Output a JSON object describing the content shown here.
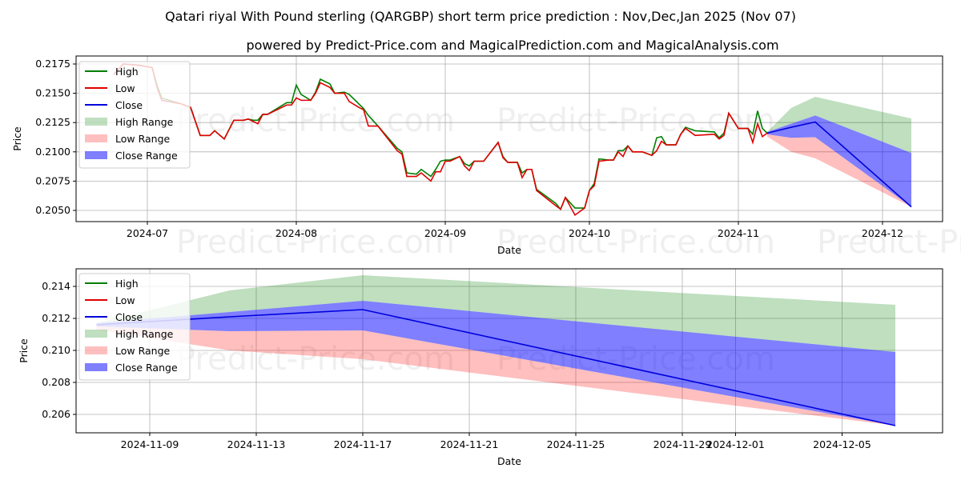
{
  "title": "Qatari riyal With Pound sterling (QARGBP) short term price prediction : Nov,Dec,Jan 2025 (Nov 07)",
  "subtitle": "powered by Predict-Price.com and MagicalPrediction.com and MagicalAnalysis.com",
  "watermark": "Predict-Price.com",
  "colors": {
    "high": "#008000",
    "low": "#e00000",
    "close": "#0000dd",
    "high_range": "#008000",
    "low_range": "#ff0000",
    "close_range": "#0000ff"
  },
  "legend": [
    "High",
    "Low",
    "Close",
    "High Range",
    "Low Range",
    "Close Range"
  ],
  "chart_data": [
    {
      "type": "line",
      "xlabel": "Date",
      "ylabel": "Price",
      "ylim": [
        0.204,
        0.2182
      ],
      "grid": true,
      "legend_position": "top-left",
      "x_ticks": [
        "2024-07",
        "2024-08",
        "2024-09",
        "2024-10",
        "2024-11",
        "2024-12"
      ],
      "y_ticks": [
        "0.2050",
        "0.2075",
        "0.2100",
        "0.2125",
        "0.2150",
        "0.2175"
      ],
      "history": {
        "dates": [
          "2024-06-24",
          "2024-06-26",
          "2024-06-29",
          "2024-07-02",
          "2024-07-03",
          "2024-07-04",
          "2024-07-08",
          "2024-07-10",
          "2024-07-12",
          "2024-07-14",
          "2024-07-15",
          "2024-07-17",
          "2024-07-19",
          "2024-07-21",
          "2024-07-22",
          "2024-07-23",
          "2024-07-24",
          "2024-07-25",
          "2024-07-26",
          "2024-07-30",
          "2024-07-31",
          "2024-08-01",
          "2024-08-02",
          "2024-08-04",
          "2024-08-05",
          "2024-08-06",
          "2024-08-08",
          "2024-08-09",
          "2024-08-11",
          "2024-08-12",
          "2024-08-14",
          "2024-08-15",
          "2024-08-16",
          "2024-08-18",
          "2024-08-22",
          "2024-08-23",
          "2024-08-24",
          "2024-08-26",
          "2024-08-27",
          "2024-08-29",
          "2024-08-30",
          "2024-08-31",
          "2024-09-01",
          "2024-09-02",
          "2024-09-04",
          "2024-09-05",
          "2024-09-06",
          "2024-09-07",
          "2024-09-09",
          "2024-09-12",
          "2024-09-13",
          "2024-09-14",
          "2024-09-16",
          "2024-09-17",
          "2024-09-18",
          "2024-09-19",
          "2024-09-20",
          "2024-09-24",
          "2024-09-25",
          "2024-09-26",
          "2024-09-28",
          "2024-09-30",
          "2024-10-01",
          "2024-10-02",
          "2024-10-03",
          "2024-10-05",
          "2024-10-06",
          "2024-10-07",
          "2024-10-08",
          "2024-10-09",
          "2024-10-10",
          "2024-10-12",
          "2024-10-14",
          "2024-10-15",
          "2024-10-16",
          "2024-10-17",
          "2024-10-19",
          "2024-10-20",
          "2024-10-21",
          "2024-10-23",
          "2024-10-27",
          "2024-10-28",
          "2024-10-29",
          "2024-10-30",
          "2024-11-01",
          "2024-11-03",
          "2024-11-04",
          "2024-11-05",
          "2024-11-06",
          "2024-11-07"
        ],
        "high": [
          0.2166,
          0.2175,
          0.2174,
          0.2172,
          0.2157,
          0.2146,
          0.2141,
          0.2138,
          0.2114,
          0.2114,
          0.2118,
          0.2111,
          0.2127,
          0.2127,
          0.2128,
          0.2127,
          0.2127,
          0.2132,
          0.2132,
          0.2142,
          0.2142,
          0.2157,
          0.2149,
          0.2144,
          0.2151,
          0.2162,
          0.2158,
          0.215,
          0.2151,
          0.2149,
          0.2141,
          0.2137,
          0.2131,
          0.2122,
          0.2103,
          0.21,
          0.2082,
          0.2081,
          0.2085,
          0.2079,
          0.2085,
          0.2092,
          0.2093,
          0.2093,
          0.2096,
          0.209,
          0.2088,
          0.2092,
          0.2092,
          0.2108,
          0.2096,
          0.2091,
          0.2091,
          0.2082,
          0.2085,
          0.2085,
          0.2068,
          0.2056,
          0.2051,
          0.2061,
          0.2052,
          0.2052,
          0.2067,
          0.2073,
          0.2094,
          0.2093,
          0.2093,
          0.2101,
          0.2101,
          0.2105,
          0.21,
          0.21,
          0.2097,
          0.2112,
          0.2113,
          0.2106,
          0.2106,
          0.2115,
          0.2121,
          0.2118,
          0.2117,
          0.2112,
          0.2116,
          0.2133,
          0.212,
          0.212,
          0.2115,
          0.2135,
          0.212,
          0.2116
        ],
        "low": [
          0.2166,
          0.2175,
          0.2174,
          0.2172,
          0.2155,
          0.2144,
          0.2141,
          0.2138,
          0.2114,
          0.2114,
          0.2118,
          0.2111,
          0.2127,
          0.2127,
          0.2128,
          0.2126,
          0.2124,
          0.2132,
          0.2132,
          0.214,
          0.214,
          0.2146,
          0.2144,
          0.2144,
          0.215,
          0.2159,
          0.2155,
          0.215,
          0.215,
          0.2143,
          0.2138,
          0.2136,
          0.2122,
          0.2122,
          0.2101,
          0.2098,
          0.2079,
          0.2079,
          0.2082,
          0.2075,
          0.2083,
          0.2083,
          0.2092,
          0.2092,
          0.2096,
          0.2088,
          0.2084,
          0.2092,
          0.2092,
          0.2108,
          0.2095,
          0.2091,
          0.2091,
          0.2078,
          0.2085,
          0.2085,
          0.2067,
          0.2054,
          0.2051,
          0.2061,
          0.2046,
          0.2052,
          0.2067,
          0.2071,
          0.2092,
          0.2093,
          0.2093,
          0.21,
          0.2096,
          0.2105,
          0.21,
          0.21,
          0.2097,
          0.2101,
          0.2109,
          0.2106,
          0.2106,
          0.2115,
          0.212,
          0.2114,
          0.2115,
          0.2111,
          0.2114,
          0.2133,
          0.212,
          0.212,
          0.2108,
          0.2124,
          0.2113,
          0.2116
        ]
      }
    },
    {
      "type": "area",
      "xlabel": "Date",
      "ylabel": "Price",
      "ylim": [
        0.2047,
        0.2155
      ],
      "grid": true,
      "legend_position": "top-left",
      "x_ticks": [
        "2024-11-09",
        "2024-11-13",
        "2024-11-17",
        "2024-11-21",
        "2024-11-25",
        "2024-11-29",
        "2024-12-01",
        "2024-12-05"
      ],
      "y_ticks": [
        "0.206",
        "0.208",
        "0.210",
        "0.212",
        "0.214"
      ],
      "forecast": {
        "dates": [
          "2024-11-07",
          "2024-11-12",
          "2024-11-17",
          "2024-12-07"
        ],
        "close": [
          0.2116,
          0.2121,
          0.21255,
          0.2053
        ],
        "high_range_upper": [
          0.2117,
          0.21375,
          0.2147,
          0.21285
        ],
        "close_range_upper": [
          0.2117,
          0.2124,
          0.2131,
          0.2099
        ],
        "close_range_lower": [
          0.2115,
          0.2112,
          0.21125,
          0.2053
        ],
        "low_range_lower": [
          0.2113,
          0.21,
          0.20945,
          0.2053
        ]
      }
    }
  ]
}
